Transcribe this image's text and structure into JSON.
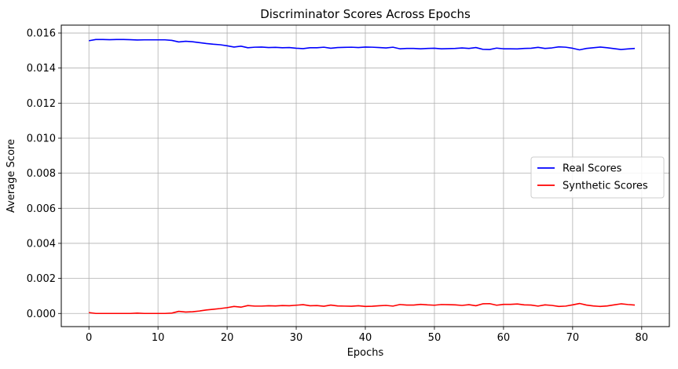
{
  "chart_data": {
    "type": "line",
    "title": "Discriminator Scores Across Epochs",
    "xlabel": "Epochs",
    "ylabel": "Average Score",
    "xlim": [
      -4,
      84
    ],
    "ylim": [
      -0.00075,
      0.01645
    ],
    "xticks": [
      0,
      10,
      20,
      30,
      40,
      50,
      60,
      70,
      80
    ],
    "xtick_labels": [
      "0",
      "10",
      "20",
      "30",
      "40",
      "50",
      "60",
      "70",
      "80"
    ],
    "yticks": [
      0,
      0.002,
      0.004,
      0.006,
      0.008,
      0.01,
      0.012,
      0.014,
      0.016
    ],
    "ytick_labels": [
      "0.000",
      "0.002",
      "0.004",
      "0.006",
      "0.008",
      "0.010",
      "0.012",
      "0.014",
      "0.016"
    ],
    "grid": true,
    "legend_position": "center-right",
    "series": [
      {
        "name": "Real Scores",
        "color": "#0000ff",
        "x": [
          0,
          1,
          2,
          3,
          4,
          5,
          6,
          7,
          8,
          9,
          10,
          11,
          12,
          13,
          14,
          15,
          16,
          17,
          18,
          19,
          20,
          21,
          22,
          23,
          24,
          25,
          26,
          27,
          28,
          29,
          30,
          31,
          32,
          33,
          34,
          35,
          36,
          37,
          38,
          39,
          40,
          41,
          42,
          43,
          44,
          45,
          46,
          47,
          48,
          49,
          50,
          51,
          52,
          53,
          54,
          55,
          56,
          57,
          58,
          59,
          60,
          61,
          62,
          63,
          64,
          65,
          66,
          67,
          68,
          69,
          70,
          71,
          72,
          73,
          74,
          75,
          76,
          77,
          78,
          79
        ],
        "values": [
          0.01556,
          0.01563,
          0.01563,
          0.01562,
          0.01563,
          0.01563,
          0.01562,
          0.0156,
          0.01561,
          0.01561,
          0.01561,
          0.01561,
          0.01558,
          0.01549,
          0.01553,
          0.0155,
          0.01545,
          0.0154,
          0.01536,
          0.01533,
          0.01527,
          0.0152,
          0.01525,
          0.01516,
          0.01519,
          0.0152,
          0.01517,
          0.01518,
          0.01516,
          0.01517,
          0.01513,
          0.01511,
          0.01516,
          0.01516,
          0.01519,
          0.01513,
          0.01517,
          0.01518,
          0.01519,
          0.01517,
          0.0152,
          0.01519,
          0.01517,
          0.01515,
          0.01519,
          0.0151,
          0.01512,
          0.01512,
          0.0151,
          0.01512,
          0.01513,
          0.0151,
          0.01511,
          0.01512,
          0.01515,
          0.01512,
          0.01517,
          0.01507,
          0.01506,
          0.01514,
          0.0151,
          0.0151,
          0.01509,
          0.01512,
          0.01513,
          0.01518,
          0.01512,
          0.01515,
          0.01521,
          0.01519,
          0.01513,
          0.01504,
          0.01512,
          0.01516,
          0.0152,
          0.01516,
          0.01511,
          0.01506,
          0.01509,
          0.01512
        ]
      },
      {
        "name": "Synthetic Scores",
        "color": "#ff0000",
        "x": [
          0,
          1,
          2,
          3,
          4,
          5,
          6,
          7,
          8,
          9,
          10,
          11,
          12,
          13,
          14,
          15,
          16,
          17,
          18,
          19,
          20,
          21,
          22,
          23,
          24,
          25,
          26,
          27,
          28,
          29,
          30,
          31,
          32,
          33,
          34,
          35,
          36,
          37,
          38,
          39,
          40,
          41,
          42,
          43,
          44,
          45,
          46,
          47,
          48,
          49,
          50,
          51,
          52,
          53,
          54,
          55,
          56,
          57,
          58,
          59,
          60,
          61,
          62,
          63,
          64,
          65,
          66,
          67,
          68,
          69,
          70,
          71,
          72,
          73,
          74,
          75,
          76,
          77,
          78,
          79
        ],
        "values": [
          5e-05,
          0.0,
          0.0,
          0.0,
          0.0,
          0.0,
          0.0,
          2e-05,
          0.0,
          0.0,
          0.0,
          0.0,
          2e-05,
          0.00012,
          8e-05,
          0.0001,
          0.00014,
          0.0002,
          0.00024,
          0.00028,
          0.00033,
          0.0004,
          0.00036,
          0.00045,
          0.00042,
          0.00042,
          0.00044,
          0.00043,
          0.00045,
          0.00044,
          0.00047,
          0.0005,
          0.00044,
          0.00045,
          0.00041,
          0.00048,
          0.00043,
          0.00042,
          0.00041,
          0.00044,
          0.0004,
          0.00041,
          0.00044,
          0.00046,
          0.00042,
          0.00051,
          0.00048,
          0.00048,
          0.00052,
          0.00049,
          0.00047,
          0.00051,
          0.0005,
          0.00049,
          0.00046,
          0.0005,
          0.00044,
          0.00055,
          0.00056,
          0.00047,
          0.00052,
          0.00052,
          0.00054,
          0.00049,
          0.00048,
          0.00042,
          0.00049,
          0.00046,
          0.0004,
          0.00042,
          0.00049,
          0.00057,
          0.00048,
          0.00043,
          0.0004,
          0.00043,
          0.00049,
          0.00055,
          0.00051,
          0.00048
        ]
      }
    ]
  }
}
